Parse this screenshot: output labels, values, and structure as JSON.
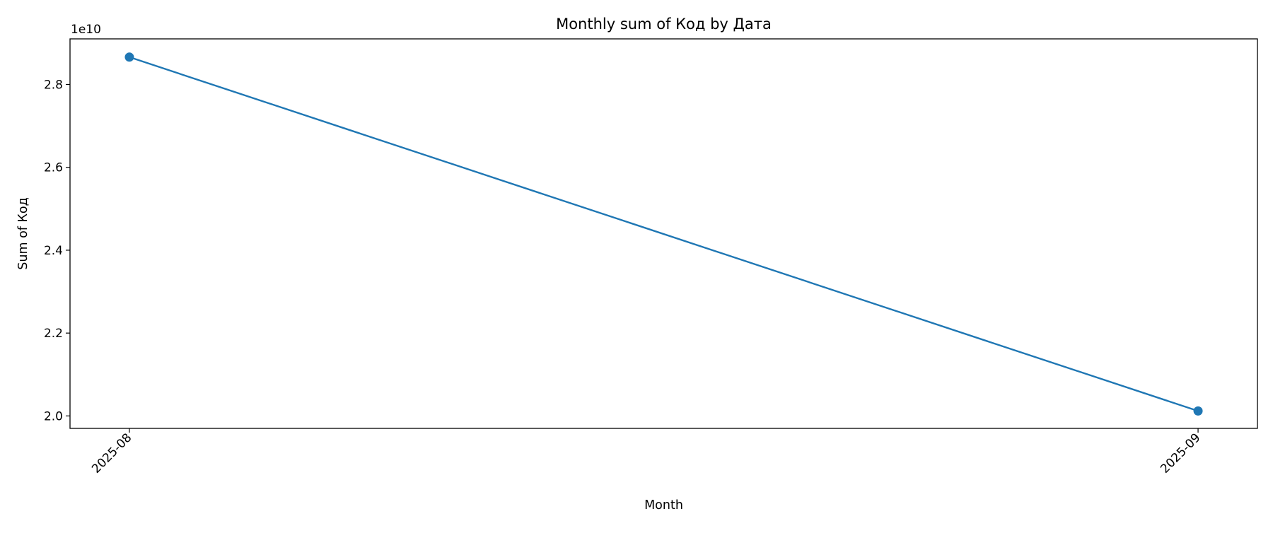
{
  "chart_data": {
    "type": "line",
    "title": "Monthly sum of Код by Дата",
    "xlabel": "Month",
    "ylabel": "Sum of Код",
    "y_offset_label": "1e10",
    "y_scale_factor": 10000000000,
    "categories": [
      "2025-08",
      "2025-09"
    ],
    "series": [
      {
        "values": [
          28660000000,
          20120000000
        ],
        "color": "#1f77b4"
      }
    ],
    "yticks": [
      20000000000,
      22000000000,
      24000000000,
      26000000000,
      28000000000
    ],
    "ytick_labels": [
      "2.0",
      "2.2",
      "2.4",
      "2.6",
      "2.8"
    ],
    "ylim": [
      19700000000,
      29100000000
    ],
    "grid": false,
    "legend": false
  }
}
